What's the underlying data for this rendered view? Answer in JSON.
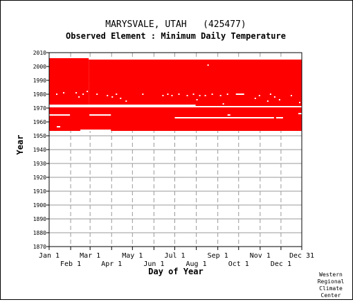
{
  "chart_data": {
    "type": "heatmap",
    "title": "MARYSVALE, UTAH   (425477)",
    "subtitle": "Observed Element : Minimum Daily Temperature",
    "xlabel": "Day of Year",
    "ylabel": "Year",
    "x_range_days": [
      1,
      365
    ],
    "ylim": [
      1870,
      2010
    ],
    "y_ticks": [
      1870,
      1880,
      1890,
      1900,
      1910,
      1920,
      1930,
      1940,
      1950,
      1960,
      1970,
      1980,
      1990,
      2000,
      2010
    ],
    "x_ticks_row1": [
      {
        "label": "Jan 1",
        "day": 1
      },
      {
        "label": "Mar 1",
        "day": 60
      },
      {
        "label": "May 1",
        "day": 121
      },
      {
        "label": "Jul 1",
        "day": 182
      },
      {
        "label": "Sep 1",
        "day": 244
      },
      {
        "label": "Nov 1",
        "day": 305
      },
      {
        "label": "Dec 31",
        "day": 365
      }
    ],
    "x_ticks_row2": [
      {
        "label": "Feb 1",
        "day": 32
      },
      {
        "label": "Apr 1",
        "day": 91
      },
      {
        "label": "Jun 1",
        "day": 152
      },
      {
        "label": "Aug 1",
        "day": 213
      },
      {
        "label": "Oct 1",
        "day": 274
      },
      {
        "label": "Dec 1",
        "day": 335
      }
    ],
    "observed_color": "#ff0000",
    "observed_blocks": [
      {
        "year_start": 1953.5,
        "year_end": 1970.5,
        "day_start": 1,
        "day_end": 365
      },
      {
        "year_start": 1971.5,
        "year_end": 2006.0,
        "day_start": 1,
        "day_end": 58
      },
      {
        "year_start": 1971.5,
        "year_end": 2005.0,
        "day_start": 58,
        "day_end": 365
      }
    ],
    "missing_segments": [
      {
        "year": 1971.0,
        "day_start": 1,
        "day_end": 365
      },
      {
        "year": 1972.0,
        "day_start": 1,
        "day_end": 212
      },
      {
        "year": 1965.0,
        "day_start": 1,
        "day_end": 31
      },
      {
        "year": 1965.0,
        "day_start": 59,
        "day_end": 90
      },
      {
        "year": 1956.5,
        "day_start": 12,
        "day_end": 17
      },
      {
        "year": 1954.0,
        "day_start": 46,
        "day_end": 90
      },
      {
        "year": 1963.0,
        "day_start": 182,
        "day_end": 325
      },
      {
        "year": 1965.0,
        "day_start": 258,
        "day_end": 262
      },
      {
        "year": 1963.0,
        "day_start": 328,
        "day_end": 338
      },
      {
        "year": 1980.0,
        "day_start": 270,
        "day_end": 282
      },
      {
        "year": 1966.0,
        "day_start": 360,
        "day_end": 365
      }
    ],
    "missing_points": [
      {
        "day": 12,
        "year": 1980
      },
      {
        "day": 22,
        "year": 1981
      },
      {
        "day": 40,
        "year": 1981
      },
      {
        "day": 44,
        "year": 1978
      },
      {
        "day": 50,
        "year": 1980
      },
      {
        "day": 56,
        "year": 1982
      },
      {
        "day": 70,
        "year": 1980
      },
      {
        "day": 85,
        "year": 1979
      },
      {
        "day": 92,
        "year": 1978
      },
      {
        "day": 98,
        "year": 1980
      },
      {
        "day": 104,
        "year": 1977
      },
      {
        "day": 112,
        "year": 1975
      },
      {
        "day": 136,
        "year": 1980
      },
      {
        "day": 165,
        "year": 1979
      },
      {
        "day": 172,
        "year": 1980
      },
      {
        "day": 178,
        "year": 1979
      },
      {
        "day": 188,
        "year": 1980
      },
      {
        "day": 200,
        "year": 1979
      },
      {
        "day": 209,
        "year": 1980
      },
      {
        "day": 214,
        "year": 1976
      },
      {
        "day": 218,
        "year": 1979
      },
      {
        "day": 226,
        "year": 1979
      },
      {
        "day": 230,
        "year": 2001
      },
      {
        "day": 236,
        "year": 1980
      },
      {
        "day": 248,
        "year": 1979
      },
      {
        "day": 252,
        "year": 1973
      },
      {
        "day": 258,
        "year": 1980
      },
      {
        "day": 298,
        "year": 1977
      },
      {
        "day": 304,
        "year": 1979
      },
      {
        "day": 316,
        "year": 1975
      },
      {
        "day": 320,
        "year": 1980
      },
      {
        "day": 326,
        "year": 1978
      },
      {
        "day": 333,
        "year": 1976
      },
      {
        "day": 350,
        "year": 1979
      },
      {
        "day": 362,
        "year": 1974
      }
    ],
    "grid": true
  },
  "footer": {
    "credit_line1": "Western",
    "credit_line2": "Regional",
    "credit_line3": "Climate",
    "credit_line4": "Center"
  }
}
